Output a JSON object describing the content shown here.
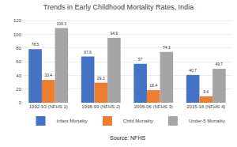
{
  "chart_data": {
    "type": "bar",
    "title": "Trends in Early Childhood Mortality Rates, India",
    "categories": [
      "1992-93 (NFHS 1)",
      "1998-99 (NFHS 2)",
      "2005-06 (NFHS 3)",
      "2015-16 (NFHS 4)"
    ],
    "series": [
      {
        "name": "Infant Mortality",
        "color": "#4472C4",
        "values": [
          78.5,
          67.6,
          57,
          40.7
        ]
      },
      {
        "name": "Child Mortality",
        "color": "#ED7D31",
        "values": [
          33.4,
          29.3,
          18.4,
          9.4
        ]
      },
      {
        "name": "Under-5 Mortality",
        "color": "#A5A5A5",
        "values": [
          109.3,
          94.9,
          74.3,
          49.7
        ]
      }
    ],
    "ylim": [
      0,
      125
    ],
    "yticks": [
      0,
      20,
      40,
      60,
      80,
      100,
      120
    ],
    "grid": true,
    "data_labels": true,
    "legend": "bottom",
    "annotations": [
      "Source: NFHS"
    ]
  }
}
